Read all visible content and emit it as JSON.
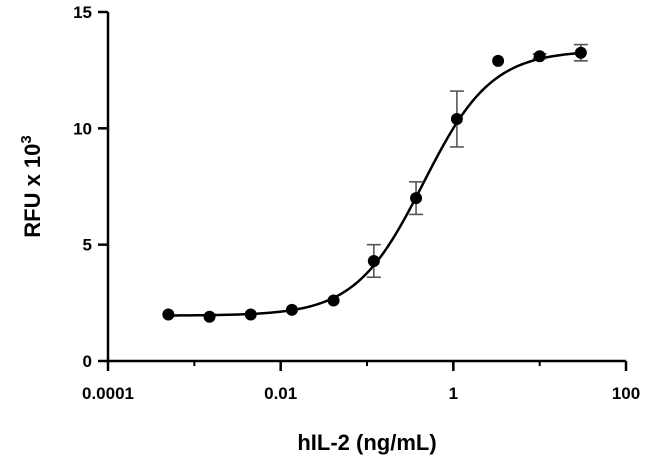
{
  "chart_data": {
    "type": "scatter",
    "x_scale": "log",
    "xlabel": "hIL-2 (ng/mL)",
    "ylabel_main": "RFU x 10",
    "ylabel_exponent": "3",
    "xlim": [
      0.0001,
      100
    ],
    "ylim": [
      0,
      15
    ],
    "x_ticks": [
      0.0001,
      0.01,
      1,
      100
    ],
    "x_tick_labels": [
      "0.0001",
      "0.01",
      "1",
      "100"
    ],
    "y_ticks": [
      0,
      5,
      10,
      15
    ],
    "y_tick_labels": [
      "0",
      "5",
      "10",
      "15"
    ],
    "grid": false,
    "series": [
      {
        "points": [
          {
            "x": 0.0005,
            "y": 2.0,
            "err": 0.0
          },
          {
            "x": 0.0015,
            "y": 1.9,
            "err": 0.0
          },
          {
            "x": 0.0045,
            "y": 2.0,
            "err": 0.0
          },
          {
            "x": 0.0135,
            "y": 2.2,
            "err": 0.0
          },
          {
            "x": 0.041,
            "y": 2.6,
            "err": 0.0
          },
          {
            "x": 0.12,
            "y": 4.3,
            "err": 0.7
          },
          {
            "x": 0.37,
            "y": 7.0,
            "err": 0.7
          },
          {
            "x": 1.1,
            "y": 10.4,
            "err": 1.2
          },
          {
            "x": 3.3,
            "y": 12.9,
            "err": 0.0
          },
          {
            "x": 10.0,
            "y": 13.1,
            "err": 0.1
          },
          {
            "x": 30.0,
            "y": 13.25,
            "err": 0.35
          }
        ],
        "fit": {
          "model": "4PL",
          "bottom": 1.95,
          "top": 13.35,
          "ec50": 0.45,
          "hill": 1.1
        }
      }
    ]
  }
}
